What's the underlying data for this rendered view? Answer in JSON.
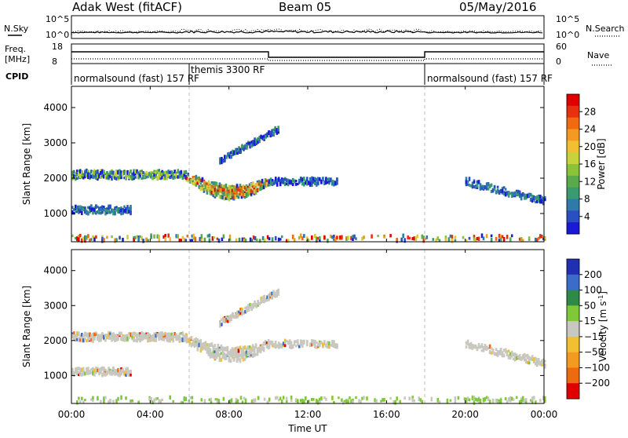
{
  "header": {
    "radar": "Adak West (fitACF)",
    "beam": "Beam 05",
    "date": "05/May/2016"
  },
  "top_panel": {
    "nsky_label": "N.Sky",
    "nsearch_label": "N.Search",
    "left_ticks": [
      "10^5",
      "10^0"
    ],
    "right_ticks": [
      "10^5",
      "10^0"
    ]
  },
  "freq_panel": {
    "freq_label": "Freq.",
    "freq_unit": "[MHz]",
    "nave_label": "Nave",
    "left_ticks": [
      "18",
      "8"
    ],
    "right_ticks": [
      "60",
      "0"
    ]
  },
  "cpid": {
    "label": "CPID",
    "segments": [
      {
        "text": "normalsound (fast) 157 RF",
        "start_hour": 0
      },
      {
        "text": "themis 3300 RF",
        "start_hour": 6
      },
      {
        "text": "normalsound (fast) 157 RF",
        "start_hour": 18
      }
    ]
  },
  "x_axis": {
    "label": "Time UT",
    "ticks": [
      "00:00",
      "04:00",
      "08:00",
      "12:00",
      "16:00",
      "20:00",
      "00:00"
    ],
    "range_hours": [
      0,
      24
    ]
  },
  "chart_data": [
    {
      "type": "heatmap",
      "title": "",
      "ylabel": "Slant Range [km]",
      "xlabel": "",
      "ylim": [
        200,
        4600
      ],
      "yticks": [
        1000,
        2000,
        3000,
        4000
      ],
      "colorbar": {
        "label": "Power [dB]",
        "ticks": [
          "4",
          "8",
          "12",
          "16",
          "20",
          "24",
          "28"
        ],
        "colors": [
          "#1a1ad6",
          "#2a4fc0",
          "#2f7aa8",
          "#3a9a70",
          "#5aaa4a",
          "#8ac33a",
          "#c8d23a",
          "#f0c030",
          "#f39a20",
          "#f06a10",
          "#e83010",
          "#e00000"
        ]
      },
      "regions": [
        {
          "name": "band-2000-early",
          "t": [
            0.0,
            5.8
          ],
          "r_center": 2100,
          "r_width": 220,
          "level": "low-mid"
        },
        {
          "name": "band-2000-peak",
          "t": [
            5.8,
            10.0
          ],
          "r_center": 1750,
          "r_width": 280,
          "level": "high"
        },
        {
          "name": "band-2000-late",
          "t": [
            10.0,
            13.5
          ],
          "r_center": 1900,
          "r_width": 180,
          "level": "low"
        },
        {
          "name": "band-1100-early",
          "t": [
            0.0,
            3.0
          ],
          "r_center": 1100,
          "r_width": 200,
          "level": "low"
        },
        {
          "name": "patch-3300",
          "t": [
            7.5,
            10.5
          ],
          "r_center": 3200,
          "r_width": 250,
          "level": "low"
        },
        {
          "name": "band-late-1500",
          "t": [
            20.0,
            24.0
          ],
          "r_center": 1500,
          "r_width": 200,
          "level": "low"
        },
        {
          "name": "ground-scatter",
          "t": [
            0.0,
            24.0
          ],
          "r_center": 300,
          "r_width": 150,
          "level": "mixed"
        }
      ]
    },
    {
      "type": "heatmap",
      "title": "",
      "ylabel": "Slant Range [km]",
      "xlabel": "Time UT",
      "ylim": [
        200,
        4600
      ],
      "yticks": [
        1000,
        2000,
        3000,
        4000
      ],
      "colorbar": {
        "label": "Velocity [m s^-1]",
        "ticks": [
          "200",
          "100",
          "50",
          "15",
          "-15",
          "-50",
          "-100",
          "-200"
        ],
        "colors": [
          "#2030b0",
          "#3a6cc8",
          "#2e8a46",
          "#7ec83a",
          "#c8c8c0",
          "#f0c030",
          "#f39a20",
          "#ee6a10",
          "#e00000"
        ]
      },
      "regions": [
        {
          "name": "band-2000-early",
          "t": [
            0.0,
            5.8
          ],
          "r_center": 2100,
          "r_width": 220,
          "level": "near-zero"
        },
        {
          "name": "band-2000-peak",
          "t": [
            5.8,
            10.0
          ],
          "r_center": 1750,
          "r_width": 280,
          "level": "near-zero"
        },
        {
          "name": "band-2000-late",
          "t": [
            10.0,
            13.5
          ],
          "r_center": 1900,
          "r_width": 180,
          "level": "near-zero"
        },
        {
          "name": "band-1100-early",
          "t": [
            0.0,
            3.0
          ],
          "r_center": 1100,
          "r_width": 200,
          "level": "near-zero"
        },
        {
          "name": "patch-3300",
          "t": [
            7.5,
            10.5
          ],
          "r_center": 3200,
          "r_width": 250,
          "level": "near-zero"
        },
        {
          "name": "band-late-1500",
          "t": [
            20.0,
            24.0
          ],
          "r_center": 1500,
          "r_width": 200,
          "level": "near-zero"
        },
        {
          "name": "ground-scatter",
          "t": [
            0.0,
            24.0
          ],
          "r_center": 300,
          "r_width": 150,
          "level": "ground"
        }
      ]
    }
  ]
}
